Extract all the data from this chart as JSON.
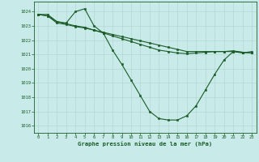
{
  "title": "Graphe pression niveau de la mer (hPa)",
  "bg_color": "#c8eae8",
  "grid_color": "#afd4d0",
  "line_color": "#1a5c28",
  "marker_color": "#1a5c28",
  "xlim": [
    -0.5,
    23.5
  ],
  "ylim": [
    1015.5,
    1024.7
  ],
  "yticks": [
    1016,
    1017,
    1018,
    1019,
    1020,
    1021,
    1022,
    1023,
    1024
  ],
  "xticks": [
    0,
    1,
    2,
    3,
    4,
    5,
    6,
    7,
    8,
    9,
    10,
    11,
    12,
    13,
    14,
    15,
    16,
    17,
    18,
    19,
    20,
    21,
    22,
    23
  ],
  "line1": [
    1023.8,
    1023.8,
    1023.3,
    1023.2,
    1024.0,
    1024.2,
    1023.0,
    1022.5,
    1021.3,
    1020.3,
    1019.2,
    1018.1,
    1017.0,
    1016.5,
    1016.4,
    1016.4,
    1016.7,
    1017.4,
    1018.5,
    1019.6,
    1020.6,
    1021.2,
    1021.1,
    1021.2
  ],
  "line2": [
    1023.8,
    1023.7,
    1023.2,
    1023.1,
    1022.95,
    1022.85,
    1022.7,
    1022.55,
    1022.4,
    1022.25,
    1022.1,
    1021.95,
    1021.8,
    1021.65,
    1021.5,
    1021.35,
    1021.2,
    1021.2,
    1021.2,
    1021.2,
    1021.2,
    1021.2,
    1021.15,
    1021.1
  ],
  "line3": [
    1023.8,
    1023.7,
    1023.3,
    1023.15,
    1023.0,
    1022.9,
    1022.7,
    1022.5,
    1022.3,
    1022.1,
    1021.9,
    1021.7,
    1021.5,
    1021.3,
    1021.2,
    1021.1,
    1021.05,
    1021.1,
    1021.15,
    1021.2,
    1021.2,
    1021.25,
    1021.15,
    1021.1
  ]
}
